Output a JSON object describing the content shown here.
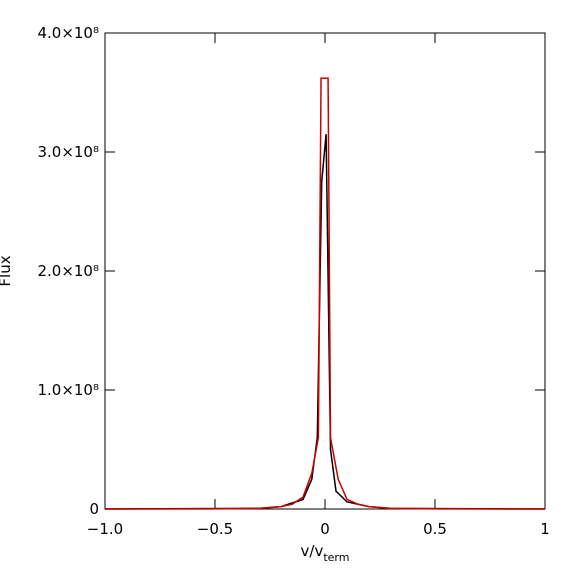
{
  "chart_data": {
    "type": "line",
    "ylabel": "Flux",
    "xlabel": {
      "text": "v/v",
      "subscript": "term"
    },
    "xlim": [
      -1,
      1
    ],
    "xticks": [
      {
        "value": -1,
        "label": "−1.0"
      },
      {
        "value": -0.5,
        "label": "−0.5"
      },
      0.0,
      0.5,
      1.0
    ],
    "ylim": [
      0,
      400000000
    ],
    "yticks": [
      0,
      {
        "value": 100000000,
        "label": "1.0×10⁸"
      },
      {
        "value": 200000000,
        "label": "2.0×10⁸"
      },
      {
        "value": 300000000,
        "label": "3.0×10⁸"
      },
      {
        "value": 400000000,
        "label": "4.0×10⁸"
      }
    ],
    "series": [
      {
        "color": "#000000",
        "x": [
          -1,
          -0.3,
          -0.2,
          -0.1,
          -0.06,
          -0.035,
          -0.015,
          0.005,
          0.025,
          0.05,
          0.1,
          0.2,
          0.3,
          1
        ],
        "values": [
          0,
          500000,
          2000000,
          8000000,
          25000000,
          60000000,
          275000000,
          315000000,
          50000000,
          15000000,
          6000000,
          2000000,
          500000,
          0
        ]
      },
      {
        "color": "#cc0000",
        "x": [
          -1,
          -0.5,
          -0.3,
          -0.2,
          -0.15,
          -0.1,
          -0.06,
          -0.03,
          -0.018,
          0.014,
          0.025,
          0.06,
          0.1,
          0.15,
          0.2,
          0.3,
          0.5,
          1
        ],
        "values": [
          0,
          100000,
          500000,
          2000000,
          4000000,
          10000000,
          30000000,
          60000000,
          362000000,
          362000000,
          60000000,
          25000000,
          8000000,
          4000000,
          2000000,
          500000,
          100000,
          0
        ]
      }
    ]
  }
}
